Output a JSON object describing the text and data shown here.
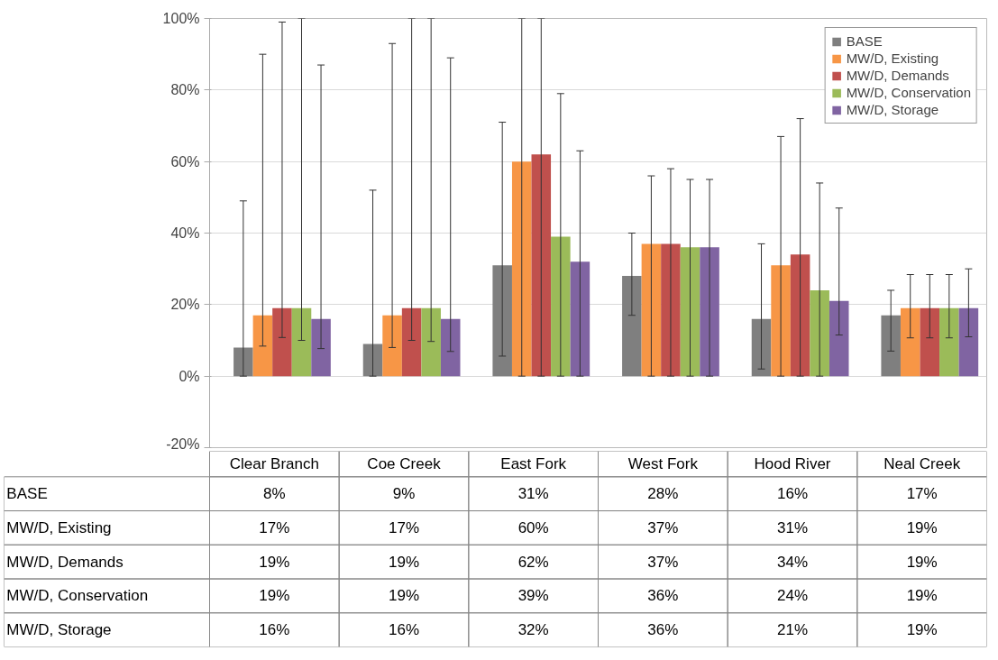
{
  "chart_data": {
    "type": "bar",
    "categories": [
      "Clear Branch",
      "Coe Creek",
      "East Fork",
      "West Fork",
      "Hood River",
      "Neal Creek"
    ],
    "series": [
      {
        "name": "BASE",
        "color": "#7f7f7f",
        "values": [
          8,
          9,
          31,
          28,
          16,
          17
        ],
        "value_labels": [
          "8%",
          "9%",
          "31%",
          "28%",
          "16%",
          "17%"
        ],
        "errors": [
          [
            0,
            49
          ],
          [
            0,
            52
          ],
          [
            5.6,
            71
          ],
          [
            17,
            40
          ],
          [
            2,
            37
          ],
          [
            7,
            24
          ]
        ]
      },
      {
        "name": "MW/D, Existing",
        "color": "#f79646",
        "values": [
          17,
          17,
          60,
          37,
          31,
          19
        ],
        "value_labels": [
          "17%",
          "17%",
          "60%",
          "37%",
          "31%",
          "19%"
        ],
        "errors": [
          [
            8.4,
            90
          ],
          [
            8,
            93
          ],
          [
            0,
            100
          ],
          [
            0,
            56
          ],
          [
            0,
            67
          ],
          [
            10.7,
            28.4
          ]
        ]
      },
      {
        "name": "MW/D, Demands",
        "color": "#c0504d",
        "values": [
          19,
          19,
          62,
          37,
          34,
          19
        ],
        "value_labels": [
          "19%",
          "19%",
          "62%",
          "37%",
          "34%",
          "19%"
        ],
        "errors": [
          [
            10.8,
            99
          ],
          [
            10,
            100
          ],
          [
            0,
            100
          ],
          [
            0,
            58
          ],
          [
            0,
            72
          ],
          [
            10.7,
            28.4
          ]
        ]
      },
      {
        "name": "MW/D, Conservation",
        "color": "#9bbb59",
        "values": [
          19,
          19,
          39,
          36,
          24,
          19
        ],
        "value_labels": [
          "19%",
          "19%",
          "39%",
          "36%",
          "24%",
          "19%"
        ],
        "errors": [
          [
            10,
            100
          ],
          [
            9.7,
            100
          ],
          [
            0,
            79
          ],
          [
            0,
            55
          ],
          [
            0,
            54
          ],
          [
            10.7,
            28.4
          ]
        ]
      },
      {
        "name": "MW/D, Storage",
        "color": "#8064a2",
        "values": [
          16,
          16,
          32,
          36,
          21,
          19
        ],
        "value_labels": [
          "16%",
          "16%",
          "32%",
          "36%",
          "21%",
          "19%"
        ],
        "errors": [
          [
            7.7,
            87
          ],
          [
            6.9,
            89
          ],
          [
            0,
            63
          ],
          [
            0,
            55
          ],
          [
            11.5,
            47
          ],
          [
            11,
            30
          ]
        ]
      }
    ],
    "ylim": [
      -20,
      100
    ],
    "yticks": [
      {
        "value": -20,
        "label": "-20%"
      },
      {
        "value": 0,
        "label": "0%"
      },
      {
        "value": 20,
        "label": "20%"
      },
      {
        "value": 40,
        "label": "40%"
      },
      {
        "value": 60,
        "label": "60%"
      },
      {
        "value": 80,
        "label": "80%"
      },
      {
        "value": 100,
        "label": "100%"
      }
    ],
    "grid": "y",
    "legend": "top right"
  }
}
